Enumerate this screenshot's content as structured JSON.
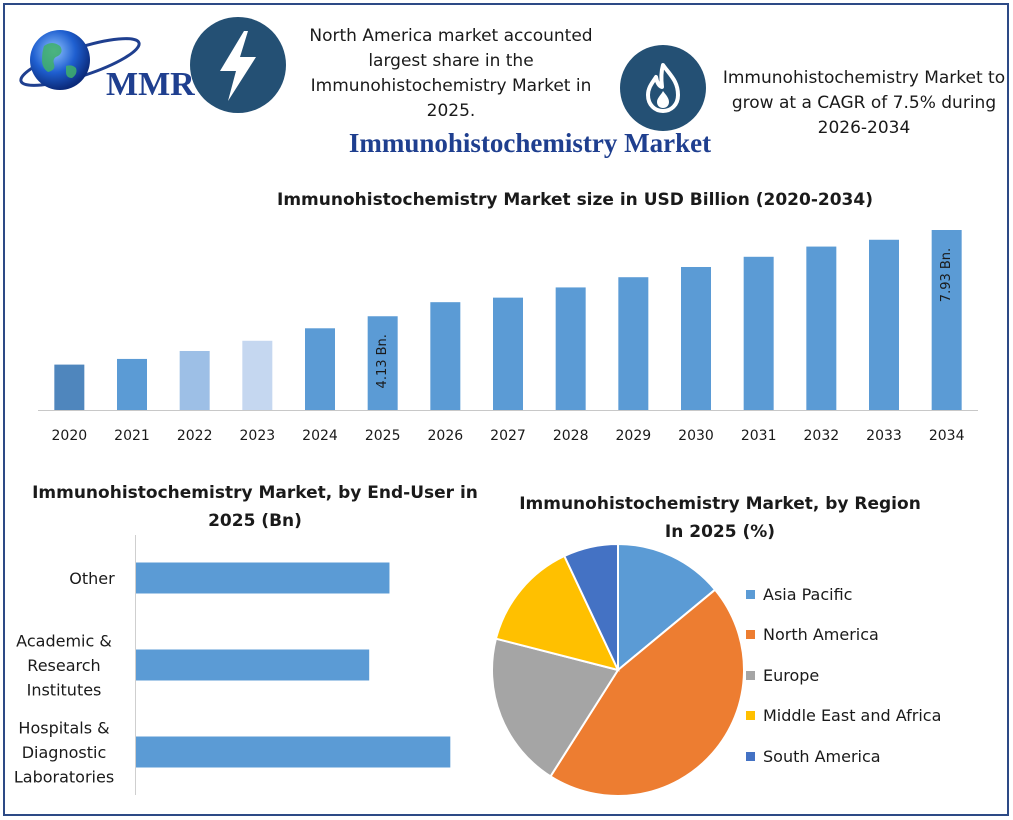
{
  "brand": {
    "logo_text": "MMR"
  },
  "header": {
    "note_left": "North America market accounted largest share in the Immunohistochemistry Market in 2025.",
    "note_right": "Immunohistochemistry Market to grow at a CAGR of 7.5% during 2026-2034",
    "main_title": "Immunohistochemistry Market",
    "icons": [
      "lightning-bolt-icon",
      "flame-icon",
      "globe-icon"
    ]
  },
  "chart_data": [
    {
      "type": "bar",
      "title": "Immunohistochemistry Market size in USD Billion (2020-2034)",
      "categories": [
        "2020",
        "2021",
        "2022",
        "2023",
        "2024",
        "2025",
        "2026",
        "2027",
        "2028",
        "2029",
        "2030",
        "2031",
        "2032",
        "2033",
        "2034"
      ],
      "values": [
        2.0,
        2.25,
        2.6,
        3.05,
        3.6,
        4.13,
        4.75,
        4.95,
        5.4,
        5.85,
        6.3,
        6.75,
        7.2,
        7.5,
        7.93
      ],
      "data_labels": {
        "5": "4.13 Bn.",
        "14": "7.93 Bn."
      },
      "bar_colors": [
        "#4f86bd",
        "#5b9bd5",
        "#9dbfe6",
        "#c5d7f0",
        "#5b9bd5",
        "#5b9bd5",
        "#5b9bd5",
        "#5b9bd5",
        "#5b9bd5",
        "#5b9bd5",
        "#5b9bd5",
        "#5b9bd5",
        "#5b9bd5",
        "#5b9bd5",
        "#5b9bd5"
      ],
      "ylim": [
        0,
        8.2
      ],
      "xlabel": "",
      "ylabel": "",
      "grid": false
    },
    {
      "type": "bar",
      "orientation": "horizontal",
      "title": "Immunohistochemistry Market, by End-User in 2025 (Bn)",
      "categories": [
        "Other",
        "Academic & Research Institutes",
        "Hospitals & Diagnostic Laboratories"
      ],
      "category_lines": [
        [
          "Other"
        ],
        [
          "Academic &",
          "Research",
          "Institutes"
        ],
        [
          "Hospitals &",
          "Diagnostic",
          "Laboratories"
        ]
      ],
      "values": [
        1.25,
        1.15,
        1.55
      ],
      "xlim": [
        0,
        1.8
      ],
      "color": "#5b9bd5",
      "grid": false
    },
    {
      "type": "pie",
      "title": "Immunohistochemistry Market, by Region In 2025 (%)",
      "labels": [
        "Asia Pacific",
        "North America",
        "Europe",
        "Middle East and Africa",
        "South America"
      ],
      "values": [
        14,
        45,
        20,
        14,
        7
      ],
      "colors": [
        "#5b9bd5",
        "#ed7d31",
        "#a5a5a5",
        "#ffc000",
        "#4472c4"
      ],
      "legend": "right"
    }
  ]
}
